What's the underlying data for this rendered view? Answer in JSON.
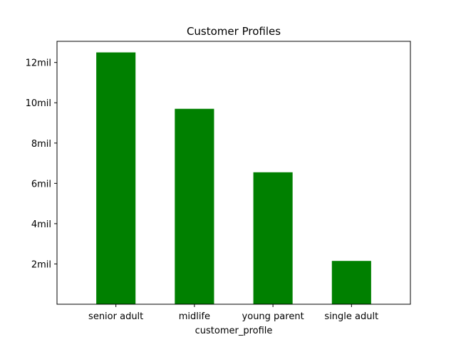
{
  "chart_data": {
    "type": "bar",
    "title": "Customer Profiles",
    "xlabel": "customer_profile",
    "ylabel": "",
    "categories": [
      "senior adult",
      "midlife",
      "young parent",
      "single adult"
    ],
    "values": [
      12.5,
      9.7,
      6.55,
      2.15
    ],
    "value_unit": "mil",
    "ylim": [
      0,
      13.05
    ],
    "yticks": [
      {
        "value": 2,
        "label": "2mil"
      },
      {
        "value": 4,
        "label": "4mil"
      },
      {
        "value": 6,
        "label": "6mil"
      },
      {
        "value": 8,
        "label": "8mil"
      },
      {
        "value": 10,
        "label": "10mil"
      },
      {
        "value": 12,
        "label": "12mil"
      }
    ],
    "bar_color": "#008000",
    "grid": false,
    "legend": "none"
  }
}
